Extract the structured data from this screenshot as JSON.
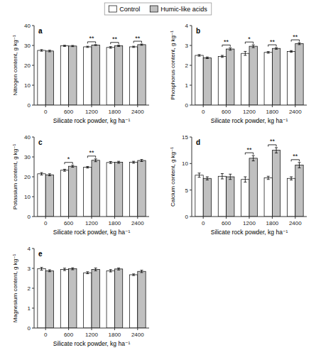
{
  "chart_data": [
    {
      "type": "bar",
      "title": "a",
      "x_label": "Silicate rock powder, kg ha⁻¹",
      "y_label": "Nitrogen content, g kg⁻¹",
      "categories": [
        "0",
        "600",
        "1200",
        "1800",
        "2400"
      ],
      "series": [
        {
          "name": "Control",
          "color": "#FFFFFF",
          "values": [
            27.5,
            29.8,
            29.3,
            29.0,
            29.3
          ],
          "errors": [
            0.4,
            0.3,
            0.3,
            0.4,
            0.3
          ]
        },
        {
          "name": "Humic-like acids",
          "color": "#C0C0C0",
          "values": [
            27.2,
            29.7,
            30.2,
            29.8,
            30.4
          ],
          "errors": [
            0.4,
            0.3,
            0.2,
            0.3,
            0.3
          ]
        }
      ],
      "ylim": [
        0,
        40
      ],
      "yticks": [
        0,
        10,
        20,
        30,
        40
      ],
      "grid": false,
      "legend": "top",
      "annotations": [
        {
          "category": "1200",
          "text": "**"
        },
        {
          "category": "1800",
          "text": "**"
        },
        {
          "category": "2400",
          "text": "**"
        }
      ]
    },
    {
      "type": "bar",
      "title": "b",
      "x_label": "Silicate rock powder, kg ha⁻¹",
      "y_label": "Phosphorus content, g kg⁻¹",
      "categories": [
        "0",
        "600",
        "1200",
        "1800",
        "2400"
      ],
      "series": [
        {
          "name": "Control",
          "color": "#FFFFFF",
          "values": [
            2.5,
            2.45,
            2.6,
            2.65,
            2.7
          ],
          "errors": [
            0.04,
            0.05,
            0.1,
            0.04,
            0.04
          ]
        },
        {
          "name": "Humic-like acids",
          "color": "#C0C0C0",
          "values": [
            2.38,
            2.82,
            2.96,
            2.85,
            3.09
          ],
          "errors": [
            0.04,
            0.06,
            0.07,
            0.04,
            0.05
          ]
        }
      ],
      "ylim": [
        0,
        4
      ],
      "yticks": [
        0,
        1,
        2,
        3,
        4
      ],
      "grid": false,
      "annotations": [
        {
          "category": "600",
          "text": "**"
        },
        {
          "category": "1200",
          "text": "*"
        },
        {
          "category": "1800",
          "text": "**"
        },
        {
          "category": "2400",
          "text": "**"
        }
      ]
    },
    {
      "type": "bar",
      "title": "c",
      "x_label": "Silicate rock powder, kg ha⁻¹",
      "y_label": "Potassium content, g kg⁻¹",
      "categories": [
        "0",
        "600",
        "1200",
        "1800",
        "2400"
      ],
      "series": [
        {
          "name": "Control",
          "color": "#FFFFFF",
          "values": [
            21.5,
            23.3,
            24.8,
            27.2,
            27.3
          ],
          "errors": [
            0.6,
            0.5,
            0.4,
            0.5,
            0.5
          ]
        },
        {
          "name": "Humic-like acids",
          "color": "#C0C0C0",
          "values": [
            21.0,
            25.3,
            28.3,
            27.3,
            28.2
          ],
          "errors": [
            0.5,
            0.5,
            0.7,
            0.5,
            0.5
          ]
        }
      ],
      "ylim": [
        0,
        40
      ],
      "yticks": [
        0,
        10,
        20,
        30,
        40
      ],
      "grid": false,
      "annotations": [
        {
          "category": "600",
          "text": "*"
        },
        {
          "category": "1200",
          "text": "**"
        }
      ]
    },
    {
      "type": "bar",
      "title": "d",
      "x_label": "Silicate rock powder, kg ha⁻¹",
      "y_label": "Calcium content, g kg⁻¹",
      "categories": [
        "0",
        "600",
        "1200",
        "1800",
        "2400"
      ],
      "series": [
        {
          "name": "Control",
          "color": "#FFFFFF",
          "values": [
            7.8,
            7.6,
            7.0,
            7.3,
            7.2
          ],
          "errors": [
            0.4,
            0.5,
            0.5,
            0.3,
            0.3
          ]
        },
        {
          "name": "Humic-like acids",
          "color": "#C0C0C0",
          "values": [
            7.2,
            7.5,
            11.0,
            12.5,
            9.7
          ],
          "errors": [
            0.3,
            0.5,
            0.5,
            0.5,
            0.5
          ]
        }
      ],
      "ylim": [
        0,
        15
      ],
      "yticks": [
        0,
        5,
        10,
        15
      ],
      "grid": false,
      "annotations": [
        {
          "category": "1200",
          "text": "**"
        },
        {
          "category": "1800",
          "text": "**"
        },
        {
          "category": "2400",
          "text": "**"
        }
      ]
    },
    {
      "type": "bar",
      "title": "e",
      "x_label": "Silicate rock powder, kg ha⁻¹",
      "y_label": "Magnesium content, g kg⁻¹",
      "categories": [
        "0",
        "600",
        "1200",
        "1800",
        "2400"
      ],
      "series": [
        {
          "name": "Control",
          "color": "#FFFFFF",
          "values": [
            2.98,
            2.95,
            2.78,
            2.88,
            2.68
          ],
          "errors": [
            0.07,
            0.06,
            0.05,
            0.06,
            0.04
          ]
        },
        {
          "name": "Humic-like acids",
          "color": "#C0C0C0",
          "values": [
            2.88,
            2.98,
            2.95,
            2.97,
            2.85
          ],
          "errors": [
            0.05,
            0.05,
            0.07,
            0.05,
            0.06
          ]
        }
      ],
      "ylim": [
        0,
        4
      ],
      "yticks": [
        0,
        1,
        2,
        3,
        4
      ],
      "grid": false,
      "annotations": []
    }
  ]
}
